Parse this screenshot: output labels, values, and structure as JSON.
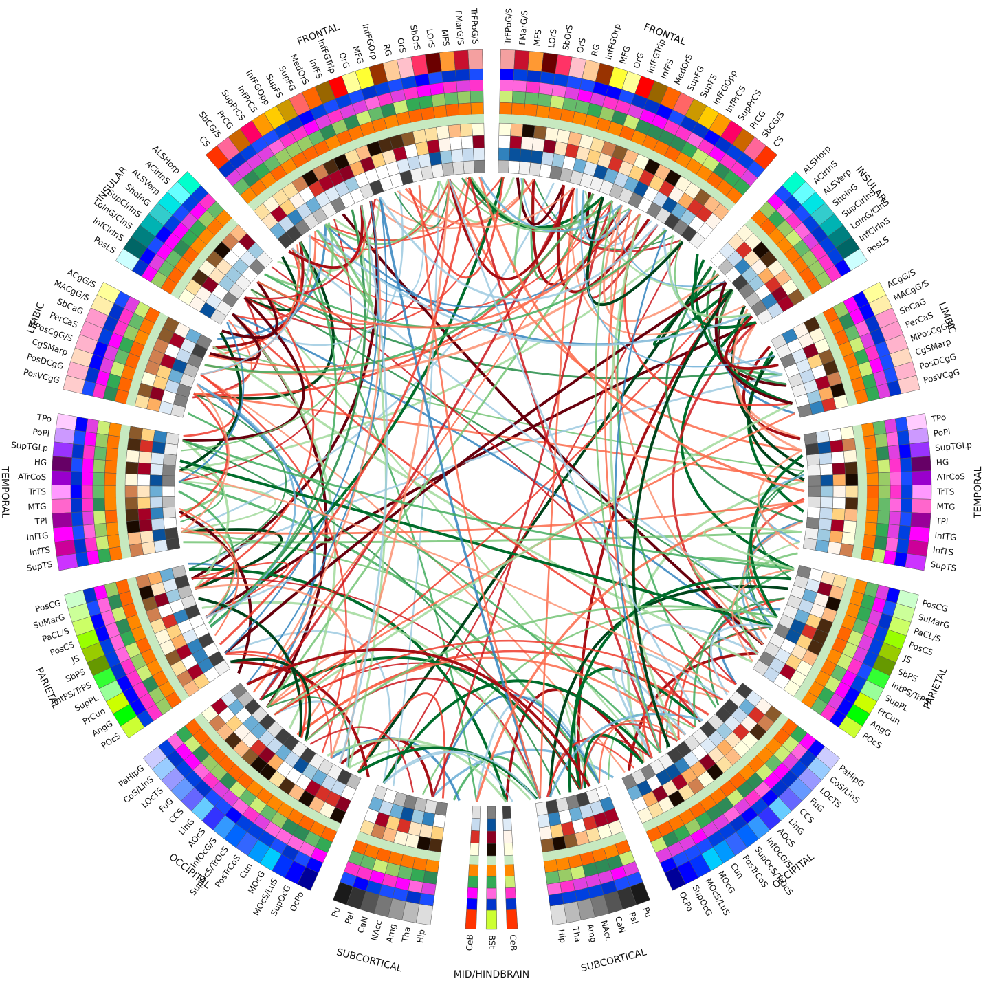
{
  "lobes": [
    {
      "name": "FRONTAL",
      "side": "R",
      "regions": [
        "TrFPoG/S",
        "FMarG/S",
        "MFS",
        "LOrS",
        "SbOrS",
        "OrS",
        "RG",
        "InfFGOrp",
        "MFG",
        "OrG",
        "InfFGTrip",
        "InfFS",
        "MedOrS",
        "SupFG",
        "SupFS",
        "InfFGOpp",
        "InfPrCS",
        "SupPrCS",
        "PrCG",
        "SbCG/S",
        "CS"
      ],
      "colors": [
        "#f4a0a0",
        "#c8102e",
        "#ff9933",
        "#6b0000",
        "#ff3366",
        "#ffc0cb",
        "#ffcc99",
        "#993300",
        "#ffff33",
        "#ffff99",
        "#ff0000",
        "#996600",
        "#ff6600",
        "#ff6666",
        "#cc9900",
        "#ffcc00",
        "#ff9900",
        "#ff0066",
        "#cc6600",
        "#ff6699",
        "#ff3300"
      ]
    },
    {
      "name": "INSULAR",
      "side": "R",
      "regions": [
        "ALSHorp",
        "ACirInS",
        "ALSVerp",
        "ShoInG",
        "SupCirInS",
        "LoInG/CInS",
        "InfCirInS",
        "PosLS"
      ],
      "colors": [
        "#00ffcc",
        "#66ffff",
        "#00e5e5",
        "#33cccc",
        "#00b3b3",
        "#008080",
        "#006666",
        "#ccffff"
      ]
    },
    {
      "name": "LIMBIC",
      "side": "R",
      "regions": [
        "ACgG/S",
        "MACgG/S",
        "SbCaG",
        "PerCaS",
        "MPosCgG/S",
        "CgSMarp",
        "PosDCgG",
        "PosVCgG"
      ],
      "colors": [
        "#ffff99",
        "#ffeeaa",
        "#ff99cc",
        "#ff99cc",
        "#ffb3cc",
        "#ffd9c0",
        "#ffb3cc",
        "#ffcccc"
      ]
    },
    {
      "name": "TEMPORAL",
      "side": "R",
      "regions": [
        "TPo",
        "PoPl",
        "SupTGLp",
        "HG",
        "ATrCoS",
        "TrTS",
        "MTG",
        "TPl",
        "InfTG",
        "InfTS",
        "SupTS"
      ],
      "colors": [
        "#ffccff",
        "#cc99ff",
        "#9933ff",
        "#660066",
        "#9900cc",
        "#ff99ff",
        "#ff66cc",
        "#990099",
        "#ff00ff",
        "#cc0099",
        "#cc33ff"
      ]
    },
    {
      "name": "PARIETAL",
      "side": "R",
      "regions": [
        "PosCG",
        "SuMarG",
        "PaCL/S",
        "PosCS",
        "JS",
        "SbPS",
        "IntPS/TrPS",
        "SupPL",
        "PrCun",
        "AngG",
        "POcS"
      ],
      "colors": [
        "#ccffcc",
        "#ccff99",
        "#ccff66",
        "#99ff00",
        "#99cc00",
        "#669900",
        "#33ff33",
        "#99ff99",
        "#ccff00",
        "#00ff00",
        "#ccff33"
      ]
    },
    {
      "name": "OCCIPITAL",
      "side": "R",
      "regions": [
        "PaHipG",
        "CoS/LinS",
        "LOcTS",
        "FuG",
        "CCS",
        "LinG",
        "AOcS",
        "InfOcG/S",
        "SupOcS/TrOcS",
        "PosTrCoS",
        "Cun",
        "MOcG",
        "MOcS/LuS",
        "SupOcG",
        "OcPo"
      ],
      "colors": [
        "#ccccff",
        "#99ccff",
        "#9999ff",
        "#6699ff",
        "#6666ff",
        "#66ccff",
        "#3333ff",
        "#3399ff",
        "#0066ff",
        "#3366ff",
        "#0099ff",
        "#00ccff",
        "#0033ff",
        "#0000ff",
        "#000099"
      ]
    },
    {
      "name": "SUBCORTICAL",
      "side": "R",
      "regions": [
        "Pu",
        "Pal",
        "CaN",
        "NAcc",
        "Amg",
        "Tha",
        "Hip"
      ],
      "colors": [
        "#1a1a1a",
        "#333333",
        "#555555",
        "#777777",
        "#999999",
        "#bbbbbb",
        "#dddddd"
      ]
    },
    {
      "name": "MID/HINDBRAIN",
      "side": "C",
      "regions": [
        "CeB",
        "BSt",
        "CeB"
      ],
      "colors": [
        "#ff3300",
        "#ccff33",
        "#ff3300"
      ]
    }
  ],
  "legend_note": "",
  "ring_palettes": {
    "ring1": [
      "#0000ff",
      "#0033cc",
      "#1a4dff",
      "#0040e0"
    ],
    "ring2": [
      "#ff33cc",
      "#ff00ff",
      "#e040e0",
      "#ff66dd"
    ],
    "ring3": [
      "#33aa55",
      "#66bb6a",
      "#99cc66",
      "#2e8b57",
      "#ccee77"
    ],
    "ring4": [
      "#ff7700",
      "#ff8800",
      "#ff6600"
    ],
    "ring5": [
      "#c7e9c0"
    ],
    "ring6": [
      "#ffffe0",
      "#fde0a0",
      "#fdbb84",
      "#d08050",
      "#8b5a2b",
      "#4a2a10",
      "#1a0a00",
      "#fff8dc"
    ],
    "ring7": [
      "#ffffff",
      "#fff5eb",
      "#ffe5c0",
      "#ffd27f",
      "#fdae61",
      "#d73027",
      "#a50026",
      "#8b0022"
    ],
    "ring8": [
      "#ffffff",
      "#deebf7",
      "#c6dbef",
      "#9ecae1",
      "#6baed6",
      "#3182bd",
      "#08519c"
    ],
    "ring9": [
      "#ffffff",
      "#f2f2f2",
      "#e0e0e0",
      "#bdbdbd",
      "#808080",
      "#404040"
    ]
  },
  "link_colors": [
    "#67000d",
    "#a50f15",
    "#cb181d",
    "#ef3b2c",
    "#fb6a4a",
    "#fc9272",
    "#00441b",
    "#006d2c",
    "#238b45",
    "#41ab5d",
    "#74c476",
    "#a1d99b",
    "#9ecae1",
    "#6baed6",
    "#3182bd"
  ]
}
